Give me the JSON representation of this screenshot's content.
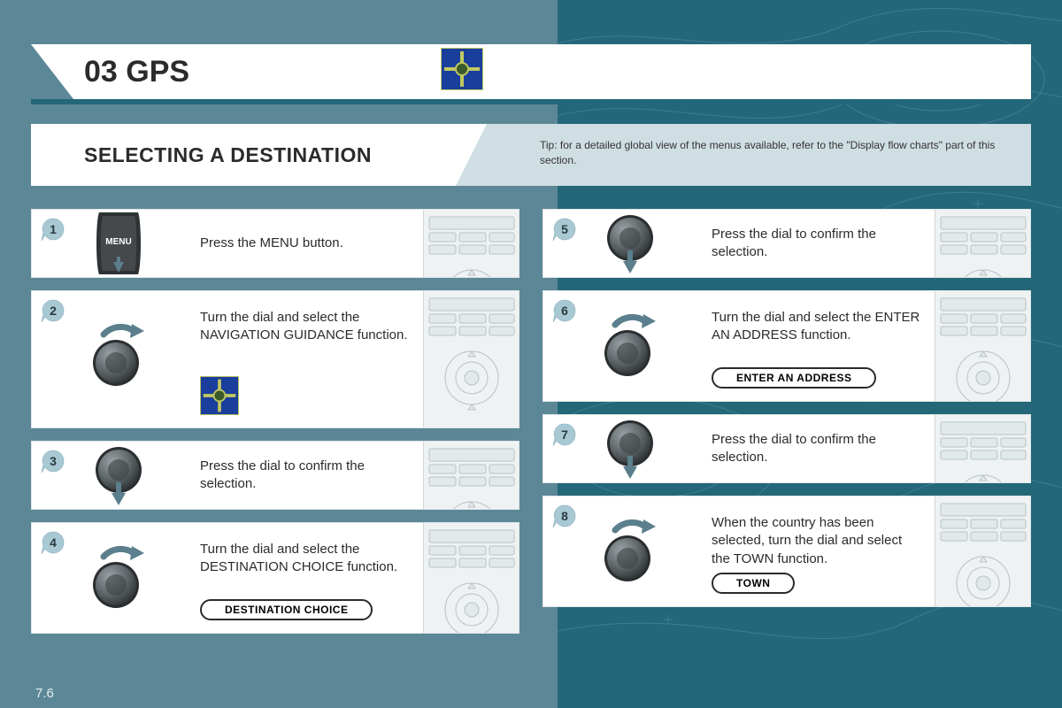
{
  "colors": {
    "page_bg": "#5c8796",
    "panel_bg": "#236779",
    "white": "#ffffff",
    "tip_bg": "#cfdee3",
    "text": "#2b2b2b",
    "bubble_fill": "#a8c9d4",
    "bubble_stroke": "#5c8796",
    "dial_outer": "#3d3d3d",
    "dial_inner": "#6d7578",
    "arrow": "#5b7f8c"
  },
  "header": {
    "chapter": "03 GPS",
    "section": "SELECTING A DESTINATION",
    "tip": "Tip: for a detailed global view of the menus available, refer to the \"Display flow charts\" part of this section."
  },
  "steps_left": [
    {
      "num": "1",
      "text": "Press the MENU button.",
      "icon": "menu",
      "height": "short"
    },
    {
      "num": "2",
      "text": "Turn the dial and select the NAVIGATION GUIDANCE function.",
      "icon": "turn",
      "height": "tall",
      "extra": "nav-icon"
    },
    {
      "num": "3",
      "text": "Press the dial to confirm the selection.",
      "icon": "press",
      "height": "short"
    },
    {
      "num": "4",
      "text": "Turn the dial and select the DESTINATION CHOICE function.",
      "icon": "turn",
      "height": "med",
      "pill": "DESTINATION CHOICE"
    }
  ],
  "steps_right": [
    {
      "num": "5",
      "text": "Press the dial to confirm the selection.",
      "icon": "press",
      "height": "short"
    },
    {
      "num": "6",
      "text": "Turn the dial and select the ENTER AN ADDRESS function.",
      "icon": "turn",
      "height": "med",
      "pill": "ENTER AN ADDRESS"
    },
    {
      "num": "7",
      "text": "Press the dial to confirm the selection.",
      "icon": "press",
      "height": "short"
    },
    {
      "num": "8",
      "text": "When the country has been selected, turn the dial and select the TOWN function.",
      "icon": "turn",
      "height": "med",
      "pill": "TOWN"
    }
  ],
  "page_number": "7.6"
}
